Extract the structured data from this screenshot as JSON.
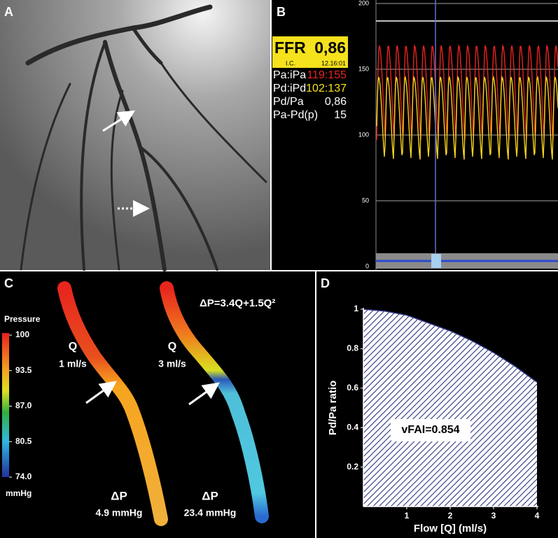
{
  "panel_a": {
    "label": "A"
  },
  "panel_b": {
    "label": "B",
    "ffr_label": "FFR",
    "ffr_value": "0,86",
    "ic": "I.C.",
    "time": "12.16:01",
    "rows": [
      [
        "Pa:iPa",
        "119:155"
      ],
      [
        "Pd:iPd",
        "102:137"
      ],
      [
        "Pd/Pa",
        "0,86"
      ],
      [
        "Pa-Pd(p)",
        "15"
      ]
    ],
    "ylim": [
      0,
      200
    ],
    "yticks": [
      0,
      50,
      100,
      150,
      200
    ]
  },
  "panel_c": {
    "label": "C",
    "legend_title": "Pressure",
    "legend_unit": "mmHg",
    "clim": [
      74,
      100
    ],
    "legend_ticks": [
      {
        "value": 100,
        "label": "100"
      },
      {
        "value": 93.5,
        "label": "93.5"
      },
      {
        "value": 87,
        "label": "87.0"
      },
      {
        "value": 80.5,
        "label": "80.5"
      },
      {
        "value": 74,
        "label": "74.0"
      }
    ],
    "equation": "ΔP=3.4Q+1.5Q²",
    "left": {
      "q": "Q",
      "flow": "1 ml/s",
      "dp": "ΔP",
      "dp_value": "4.9 mmHg"
    },
    "right": {
      "q": "Q",
      "flow": "3 ml/s",
      "dp": "ΔP",
      "dp_value": "23.4 mmHg"
    }
  },
  "chart_data": {
    "type": "area",
    "panel_label": "D",
    "xlabel": "Flow [Q] (ml/s)",
    "ylabel": "Pd/Pa ratio",
    "annotation": "vFAI=0.854",
    "x": [
      0,
      0.5,
      1,
      1.5,
      2,
      2.5,
      3,
      3.5,
      4
    ],
    "values": [
      1.0,
      0.99,
      0.97,
      0.93,
      0.89,
      0.84,
      0.78,
      0.71,
      0.63
    ],
    "color": "#2e3580",
    "xlim": [
      0,
      4
    ],
    "ylim": [
      0,
      1
    ],
    "xticks": [
      1,
      2,
      3,
      4
    ],
    "yticks": [
      0.2,
      0.4,
      0.6,
      0.8,
      1
    ]
  }
}
